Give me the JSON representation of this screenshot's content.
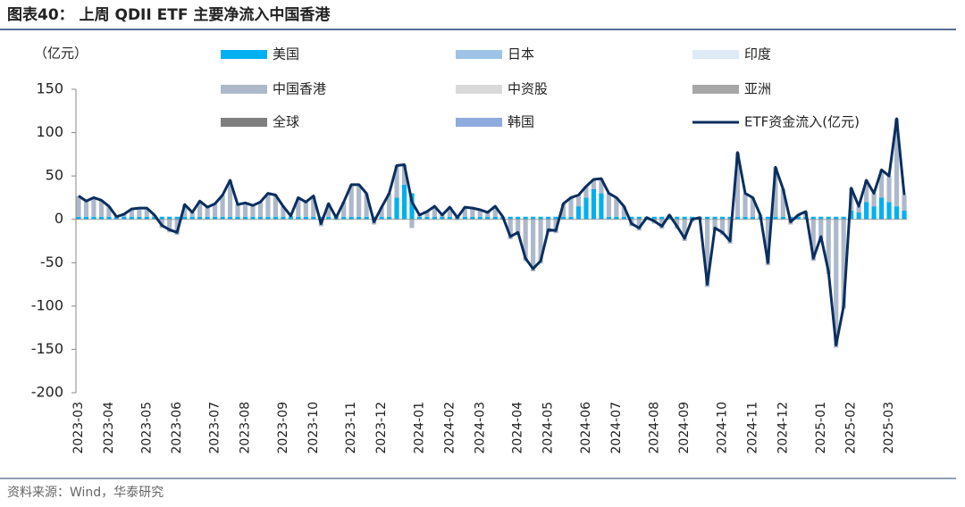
{
  "chart_data": {
    "type": "bar",
    "title": "图表40： 上周 QDII ETF 主要净流入中国香港",
    "ylabel": "（亿元）",
    "source": "资料来源：Wind，华泰研究",
    "ylim": [
      -200,
      150
    ],
    "yticks": [
      -200,
      -150,
      -100,
      -50,
      0,
      50,
      100,
      150
    ],
    "categories": [
      "2023-03",
      null,
      null,
      null,
      "2023-04",
      null,
      null,
      null,
      null,
      "2023-05",
      null,
      null,
      null,
      "2023-06",
      null,
      null,
      null,
      null,
      "2023-07",
      null,
      null,
      null,
      "2023-08",
      null,
      null,
      null,
      null,
      "2023-09",
      null,
      null,
      null,
      "2023-10",
      null,
      null,
      null,
      null,
      "2023-11",
      null,
      null,
      null,
      "2023-12",
      null,
      null,
      null,
      null,
      "2024-01",
      null,
      null,
      null,
      "2024-02",
      null,
      null,
      null,
      "2024-03",
      null,
      null,
      null,
      null,
      "2024-04",
      null,
      null,
      null,
      "2024-05",
      null,
      null,
      null,
      null,
      "2024-06",
      null,
      null,
      null,
      "2024-07",
      null,
      null,
      null,
      null,
      "2024-08",
      null,
      null,
      null,
      "2024-09",
      null,
      null,
      null,
      null,
      "2024-10",
      null,
      null,
      null,
      "2024-11",
      null,
      null,
      null,
      "2024-12",
      null,
      null,
      null,
      null,
      "2025-01",
      null,
      null,
      null,
      "2025-02",
      null,
      null,
      null,
      null,
      "2025-03",
      null,
      null
    ],
    "series": [
      {
        "name": "美国",
        "color": "#00b0f0",
        "values": [
          3,
          3,
          3,
          3,
          3,
          3,
          3,
          3,
          3,
          3,
          3,
          3,
          3,
          3,
          3,
          3,
          3,
          3,
          3,
          3,
          3,
          3,
          3,
          3,
          3,
          3,
          3,
          3,
          3,
          3,
          3,
          3,
          3,
          3,
          3,
          3,
          3,
          3,
          3,
          3,
          3,
          3,
          25,
          40,
          30,
          3,
          3,
          3,
          3,
          3,
          3,
          3,
          3,
          3,
          3,
          3,
          3,
          3,
          3,
          3,
          3,
          3,
          3,
          3,
          3,
          3,
          15,
          25,
          35,
          30,
          3,
          3,
          3,
          3,
          3,
          3,
          3,
          3,
          3,
          3,
          3,
          3,
          3,
          3,
          3,
          3,
          3,
          3,
          3,
          3,
          3,
          3,
          3,
          3,
          3,
          3,
          3,
          3,
          3,
          3,
          3,
          3,
          10,
          8,
          20,
          15,
          25,
          20,
          15,
          10
        ]
      },
      {
        "name": "日本",
        "color": "#9dc3e6",
        "values": [
          0,
          0,
          0,
          0,
          0,
          0,
          0,
          0,
          0,
          0,
          0,
          0,
          0,
          0,
          0,
          0,
          0,
          0,
          0,
          0,
          0,
          0,
          0,
          0,
          0,
          0,
          0,
          0,
          0,
          0,
          0,
          0,
          0,
          0,
          0,
          0,
          0,
          0,
          0,
          0,
          0,
          0,
          0,
          0,
          0,
          0,
          0,
          0,
          0,
          0,
          0,
          0,
          0,
          0,
          0,
          0,
          0,
          0,
          0,
          0,
          0,
          0,
          0,
          0,
          0,
          0,
          0,
          0,
          0,
          0,
          0,
          0,
          0,
          0,
          0,
          0,
          0,
          0,
          0,
          0,
          0,
          0,
          0,
          0,
          0,
          0,
          0,
          0,
          0,
          0,
          0,
          0,
          0,
          0,
          0,
          0,
          0,
          0,
          0,
          0,
          0,
          0,
          0,
          0,
          0,
          0,
          0,
          0,
          0,
          0
        ]
      },
      {
        "name": "印度",
        "color": "#deebf7",
        "values": [
          0,
          0,
          0,
          0,
          0,
          0,
          0,
          0,
          0,
          0,
          0,
          0,
          0,
          0,
          0,
          0,
          0,
          0,
          0,
          0,
          0,
          0,
          0,
          0,
          0,
          0,
          0,
          0,
          0,
          0,
          0,
          0,
          0,
          0,
          0,
          0,
          0,
          0,
          0,
          0,
          0,
          0,
          0,
          0,
          0,
          0,
          0,
          0,
          0,
          0,
          0,
          0,
          0,
          0,
          0,
          0,
          0,
          0,
          0,
          0,
          0,
          0,
          0,
          0,
          0,
          0,
          0,
          0,
          0,
          0,
          0,
          0,
          0,
          0,
          0,
          0,
          0,
          0,
          0,
          0,
          0,
          0,
          0,
          0,
          0,
          0,
          0,
          0,
          0,
          0,
          0,
          0,
          0,
          0,
          0,
          0,
          0,
          0,
          0,
          0,
          0,
          0,
          0,
          0,
          0,
          0,
          0,
          0,
          0,
          0
        ]
      },
      {
        "name": "中国香港",
        "color": "#adb9ca",
        "values": [
          24,
          18,
          22,
          19,
          12,
          0,
          3,
          9,
          10,
          10,
          2,
          -10,
          -15,
          -18,
          14,
          5,
          18,
          11,
          15,
          25,
          42,
          14,
          16,
          13,
          17,
          27,
          25,
          12,
          1,
          22,
          17,
          24,
          -8,
          15,
          -1,
          17,
          37,
          37,
          27,
          -6,
          11,
          27,
          37,
          23,
          -10,
          2,
          6,
          12,
          2,
          11,
          -1,
          11,
          10,
          8,
          5,
          12,
          0,
          -23,
          -18,
          -48,
          -60,
          -51,
          -15,
          -16,
          15,
          22,
          13,
          13,
          11,
          17,
          27,
          22,
          12,
          -8,
          -13,
          -1,
          -5,
          -11,
          2,
          -11,
          -25,
          -3,
          -1,
          -78,
          -13,
          -18,
          -28,
          74,
          27,
          22,
          2,
          -53,
          57,
          32,
          -6,
          2,
          6,
          -48,
          -23,
          -63,
          -148,
          -103,
          26,
          7,
          25,
          15,
          32,
          30,
          101,
          18
        ]
      },
      {
        "name": "中资股",
        "color": "#d9d9d9",
        "values": [
          0,
          0,
          0,
          0,
          0,
          0,
          0,
          0,
          0,
          0,
          0,
          0,
          0,
          0,
          0,
          0,
          0,
          0,
          0,
          0,
          0,
          0,
          0,
          0,
          0,
          0,
          0,
          0,
          0,
          0,
          0,
          0,
          0,
          0,
          0,
          0,
          0,
          0,
          0,
          0,
          0,
          0,
          0,
          0,
          0,
          0,
          0,
          0,
          0,
          0,
          0,
          0,
          0,
          0,
          0,
          0,
          0,
          0,
          0,
          0,
          0,
          0,
          0,
          0,
          0,
          0,
          0,
          0,
          0,
          0,
          0,
          0,
          0,
          0,
          0,
          0,
          0,
          0,
          0,
          0,
          0,
          0,
          0,
          0,
          0,
          0,
          0,
          0,
          0,
          0,
          0,
          0,
          0,
          0,
          0,
          0,
          0,
          0,
          0,
          0,
          0,
          0,
          0,
          0,
          0,
          0,
          0,
          0,
          0,
          0
        ]
      },
      {
        "name": "亚洲",
        "color": "#a6a6a6",
        "values": [
          0,
          0,
          0,
          0,
          0,
          0,
          0,
          0,
          0,
          0,
          0,
          0,
          0,
          0,
          0,
          0,
          0,
          0,
          0,
          0,
          0,
          0,
          0,
          0,
          0,
          0,
          0,
          0,
          0,
          0,
          0,
          0,
          0,
          0,
          0,
          0,
          0,
          0,
          0,
          0,
          0,
          0,
          0,
          0,
          0,
          0,
          0,
          0,
          0,
          0,
          0,
          0,
          0,
          0,
          0,
          0,
          0,
          0,
          0,
          0,
          0,
          0,
          0,
          0,
          0,
          0,
          0,
          0,
          0,
          0,
          0,
          0,
          0,
          0,
          0,
          0,
          0,
          0,
          0,
          0,
          0,
          0,
          0,
          0,
          0,
          0,
          0,
          0,
          0,
          0,
          0,
          0,
          0,
          0,
          0,
          0,
          0,
          0,
          0,
          0,
          0,
          0,
          0,
          0,
          0,
          0,
          0,
          0,
          0,
          0
        ]
      },
      {
        "name": "全球",
        "color": "#7f7f7f",
        "values": [
          0,
          0,
          0,
          0,
          0,
          0,
          0,
          0,
          0,
          0,
          0,
          0,
          0,
          0,
          0,
          0,
          0,
          0,
          0,
          0,
          0,
          0,
          0,
          0,
          0,
          0,
          0,
          0,
          0,
          0,
          0,
          0,
          0,
          0,
          0,
          0,
          0,
          0,
          0,
          0,
          0,
          0,
          0,
          0,
          0,
          0,
          0,
          0,
          0,
          0,
          0,
          0,
          0,
          0,
          0,
          0,
          0,
          0,
          0,
          0,
          0,
          0,
          0,
          0,
          0,
          0,
          0,
          0,
          0,
          0,
          0,
          0,
          0,
          0,
          0,
          0,
          0,
          0,
          0,
          0,
          0,
          0,
          0,
          0,
          0,
          0,
          0,
          0,
          0,
          0,
          0,
          0,
          0,
          0,
          0,
          0,
          0,
          0,
          0,
          0,
          0,
          0,
          0,
          0,
          0,
          0,
          0,
          0,
          0,
          0
        ]
      },
      {
        "name": "韩国",
        "color": "#8faadc",
        "values": [
          0,
          0,
          0,
          0,
          0,
          0,
          0,
          0,
          0,
          0,
          0,
          0,
          0,
          0,
          0,
          0,
          0,
          0,
          0,
          0,
          0,
          0,
          0,
          0,
          0,
          0,
          0,
          0,
          0,
          0,
          0,
          0,
          0,
          0,
          0,
          0,
          0,
          0,
          0,
          0,
          0,
          0,
          0,
          0,
          0,
          0,
          0,
          0,
          0,
          0,
          0,
          0,
          0,
          0,
          0,
          0,
          0,
          0,
          0,
          0,
          0,
          0,
          0,
          0,
          0,
          0,
          0,
          0,
          0,
          0,
          0,
          0,
          0,
          0,
          0,
          0,
          0,
          0,
          0,
          0,
          0,
          0,
          0,
          0,
          0,
          0,
          0,
          0,
          0,
          0,
          0,
          0,
          0,
          0,
          0,
          0,
          0,
          0,
          0,
          0,
          0,
          0,
          0,
          0,
          0,
          0,
          0,
          0,
          0,
          0
        ]
      },
      {
        "name": "ETF资金流入(亿元)",
        "type": "line",
        "color": "#0b2e5f",
        "values": [
          27,
          21,
          25,
          22,
          15,
          3,
          6,
          12,
          13,
          13,
          5,
          -7,
          -12,
          -15,
          17,
          8,
          21,
          14,
          18,
          28,
          45,
          17,
          19,
          16,
          20,
          30,
          28,
          15,
          4,
          25,
          20,
          27,
          -5,
          18,
          2,
          20,
          40,
          40,
          30,
          -3,
          14,
          30,
          62,
          63,
          20,
          5,
          9,
          15,
          5,
          14,
          2,
          14,
          13,
          11,
          8,
          15,
          3,
          -20,
          -15,
          -45,
          -57,
          -48,
          -12,
          -13,
          18,
          25,
          28,
          38,
          46,
          47,
          30,
          25,
          15,
          -5,
          -10,
          2,
          -2,
          -8,
          5,
          -8,
          -22,
          0,
          2,
          -75,
          -10,
          -15,
          -25,
          77,
          30,
          25,
          5,
          -50,
          60,
          35,
          -3,
          5,
          9,
          -45,
          -20,
          -60,
          -145,
          -100,
          36,
          15,
          45,
          30,
          57,
          50,
          116,
          28
        ]
      }
    ]
  }
}
